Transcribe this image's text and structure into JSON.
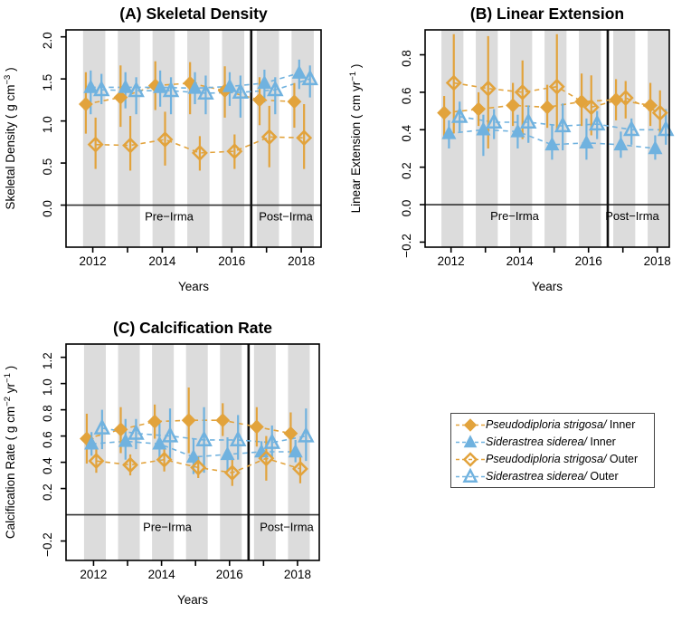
{
  "colors": {
    "orange": "#E2A33C",
    "blue": "#70B2DF",
    "band": "#DCDCDC",
    "axis": "#000000",
    "zero_line": "#333333",
    "divider": "#111111",
    "period_label": "#3A3A3A",
    "legend_border": "#444444"
  },
  "chart_data": [
    {
      "id": "A",
      "type": "scatter",
      "title": "(A) Skeletal Density",
      "ylabel": [
        {
          "t": "Skeletal  Density ( g cm"
        },
        {
          "t": "−3",
          "sup": true
        },
        {
          "t": " )"
        }
      ],
      "xlabel": "Years",
      "xlim": [
        2011.23,
        2018.57
      ],
      "ylim": [
        -0.5,
        2.083
      ],
      "grid": false,
      "legend_position": "none",
      "x_ticks": [
        {
          "v": 2012,
          "label": "2012"
        },
        {
          "v": 2013,
          "label": ""
        },
        {
          "v": 2014,
          "label": "2014"
        },
        {
          "v": 2015,
          "label": ""
        },
        {
          "v": 2016,
          "label": "2016"
        },
        {
          "v": 2017,
          "label": ""
        },
        {
          "v": 2018,
          "label": "2018"
        }
      ],
      "y_ticks": [
        {
          "v": 0.0,
          "label": "0.0"
        },
        {
          "v": 0.5,
          "label": "0.5"
        },
        {
          "v": 1.0,
          "label": "1.0"
        },
        {
          "v": 1.5,
          "label": "1.5"
        },
        {
          "v": 2.0,
          "label": "2.0"
        }
      ],
      "zero_line": 0,
      "divider_x": 2016.56,
      "period_labels": {
        "pre": "Pre−Irma",
        "post": "Post−Irma"
      },
      "bands": {
        "from": -0.28,
        "to": 0.36
      },
      "years": [
        2012,
        2013,
        2014,
        2015,
        2016,
        2017,
        2018
      ],
      "series": [
        {
          "key": "pd_inner",
          "name": "Pseudodiploria strigosa/ Inner",
          "marker": "diamond",
          "variant": "filled",
          "color_key": "orange",
          "xoff": -0.2,
          "values": [
            1.2,
            1.28,
            1.42,
            1.45,
            1.36,
            1.25,
            1.23
          ],
          "lo": [
            0.85,
            0.93,
            1.13,
            1.08,
            1.04,
            0.95,
            0.92
          ],
          "hi": [
            1.58,
            1.66,
            1.71,
            1.7,
            1.65,
            1.52,
            1.45
          ]
        },
        {
          "key": "ss_inner",
          "name": "Siderastrea siderea/ Inner",
          "marker": "triangle",
          "variant": "filled",
          "color_key": "blue",
          "xoff": -0.06,
          "values": [
            1.4,
            1.4,
            1.4,
            1.39,
            1.41,
            1.45,
            1.57
          ],
          "lo": [
            1.08,
            1.15,
            1.17,
            1.2,
            1.18,
            1.22,
            1.38
          ],
          "hi": [
            1.6,
            1.58,
            1.6,
            1.58,
            1.58,
            1.61,
            1.73
          ]
        },
        {
          "key": "pd_outer",
          "name": "Pseudodiploria strigosa/ Outer",
          "marker": "diamond",
          "variant": "open",
          "color_key": "orange",
          "xoff": 0.08,
          "values": [
            0.72,
            0.71,
            0.78,
            0.62,
            0.64,
            0.81,
            0.8
          ],
          "lo": [
            0.43,
            0.41,
            0.47,
            0.41,
            0.43,
            0.45,
            0.43
          ],
          "hi": [
            1.04,
            1.06,
            1.11,
            0.82,
            0.84,
            1.18,
            1.2
          ]
        },
        {
          "key": "ss_outer",
          "name": "Siderastrea siderea/ Outer",
          "marker": "triangle",
          "variant": "open",
          "color_key": "blue",
          "xoff": 0.25,
          "values": [
            1.37,
            1.36,
            1.36,
            1.33,
            1.34,
            1.37,
            1.5
          ],
          "lo": [
            1.2,
            1.08,
            1.08,
            1.08,
            1.04,
            1.08,
            1.28
          ],
          "hi": [
            1.56,
            1.52,
            1.52,
            1.54,
            1.54,
            1.52,
            1.66
          ]
        }
      ]
    },
    {
      "id": "B",
      "type": "scatter",
      "title": "(B) Linear Extension",
      "ylabel": [
        {
          "t": "Linear  Extension ( cm yr"
        },
        {
          "t": "−1",
          "sup": true
        },
        {
          "t": " )"
        }
      ],
      "xlabel": "Years",
      "xlim": [
        2011.245,
        2018.35
      ],
      "ylim": [
        -0.227,
        0.933
      ],
      "grid": false,
      "legend_position": "none",
      "x_ticks": [
        {
          "v": 2012,
          "label": "2012"
        },
        {
          "v": 2013,
          "label": ""
        },
        {
          "v": 2014,
          "label": "2014"
        },
        {
          "v": 2015,
          "label": ""
        },
        {
          "v": 2016,
          "label": "2016"
        },
        {
          "v": 2017,
          "label": ""
        },
        {
          "v": 2018,
          "label": "2018"
        }
      ],
      "y_ticks": [
        {
          "v": -0.2,
          "label": "−0.2"
        },
        {
          "v": 0.0,
          "label": "0.0"
        },
        {
          "v": 0.2,
          "label": "0.2"
        },
        {
          "v": 0.4,
          "label": "0.4"
        },
        {
          "v": 0.6,
          "label": "0.6"
        },
        {
          "v": 0.8,
          "label": "0.8"
        }
      ],
      "zero_line": 0,
      "divider_x": 2016.56,
      "period_labels": {
        "pre": "Pre−Irma",
        "post": "Post−Irma"
      },
      "bands": {
        "from": -0.28,
        "to": 0.36
      },
      "years": [
        2012,
        2013,
        2014,
        2015,
        2016,
        2017,
        2018
      ],
      "series": [
        {
          "key": "pd_inner",
          "name": "Pseudodiploria strigosa/ Inner",
          "marker": "diamond",
          "variant": "filled",
          "color_key": "orange",
          "xoff": -0.2,
          "values": [
            0.49,
            0.51,
            0.53,
            0.52,
            0.55,
            0.56,
            0.53
          ],
          "lo": [
            0.35,
            0.42,
            0.42,
            0.41,
            0.42,
            0.45,
            0.42
          ],
          "hi": [
            0.58,
            0.6,
            0.65,
            0.64,
            0.7,
            0.67,
            0.65
          ]
        },
        {
          "key": "ss_inner",
          "name": "Siderastrea siderea/ Inner",
          "marker": "triangle",
          "variant": "filled",
          "color_key": "blue",
          "xoff": -0.06,
          "values": [
            0.38,
            0.4,
            0.39,
            0.32,
            0.33,
            0.32,
            0.3
          ],
          "lo": [
            0.3,
            0.26,
            0.3,
            0.24,
            0.24,
            0.25,
            0.24
          ],
          "hi": [
            0.45,
            0.48,
            0.48,
            0.43,
            0.46,
            0.39,
            0.37
          ]
        },
        {
          "key": "pd_outer",
          "name": "Pseudodiploria strigosa/ Outer",
          "marker": "diamond",
          "variant": "open",
          "color_key": "orange",
          "xoff": 0.08,
          "values": [
            0.65,
            0.62,
            0.6,
            0.63,
            0.52,
            0.57,
            0.49
          ],
          "lo": [
            0.38,
            0.3,
            0.35,
            0.4,
            0.37,
            0.46,
            0.37
          ],
          "hi": [
            0.91,
            0.9,
            0.77,
            0.91,
            0.69,
            0.66,
            0.61
          ]
        },
        {
          "key": "ss_outer",
          "name": "Siderastrea siderea/ Outer",
          "marker": "triangle",
          "variant": "open",
          "color_key": "blue",
          "xoff": 0.25,
          "values": [
            0.47,
            0.44,
            0.44,
            0.42,
            0.43,
            0.4,
            0.4
          ],
          "lo": [
            0.39,
            0.35,
            0.33,
            0.29,
            0.35,
            0.32,
            0.32
          ],
          "hi": [
            0.55,
            0.51,
            0.53,
            0.54,
            0.5,
            0.46,
            0.51
          ]
        }
      ]
    },
    {
      "id": "C",
      "type": "scatter",
      "title": "(C) Calcification Rate",
      "ylabel": [
        {
          "t": "Calcification  Rate ( g cm"
        },
        {
          "t": "−2",
          "sup": true
        },
        {
          "t": " yr"
        },
        {
          "t": "−1",
          "sup": true
        },
        {
          "t": " )"
        }
      ],
      "xlabel": "Years",
      "xlim": [
        2011.19,
        2018.64
      ],
      "ylim": [
        -0.348,
        1.301
      ],
      "grid": false,
      "legend_position": "outside-right",
      "x_ticks": [
        {
          "v": 2012,
          "label": "2012"
        },
        {
          "v": 2013,
          "label": ""
        },
        {
          "v": 2014,
          "label": "2014"
        },
        {
          "v": 2015,
          "label": ""
        },
        {
          "v": 2016,
          "label": "2016"
        },
        {
          "v": 2017,
          "label": ""
        },
        {
          "v": 2018,
          "label": "2018"
        }
      ],
      "y_ticks": [
        {
          "v": -0.2,
          "label": "−0.2"
        },
        {
          "v": 0.2,
          "label": "0.2"
        },
        {
          "v": 0.4,
          "label": "0.4"
        },
        {
          "v": 0.6,
          "label": "0.6"
        },
        {
          "v": 0.8,
          "label": "0.8"
        },
        {
          "v": 1.0,
          "label": "1.0"
        },
        {
          "v": 1.2,
          "label": "1.2"
        }
      ],
      "zero_line": 0,
      "divider_x": 2016.56,
      "period_labels": {
        "pre": "Pre−Irma",
        "post": "Post−Irma"
      },
      "bands": {
        "from": -0.28,
        "to": 0.36
      },
      "years": [
        2012,
        2013,
        2014,
        2015,
        2016,
        2017,
        2018
      ],
      "series": [
        {
          "key": "pd_inner",
          "name": "Pseudodiploria strigosa/ Inner",
          "marker": "diamond",
          "variant": "filled",
          "color_key": "orange",
          "xoff": -0.2,
          "values": [
            0.58,
            0.65,
            0.71,
            0.72,
            0.72,
            0.67,
            0.62
          ],
          "lo": [
            0.39,
            0.47,
            0.58,
            0.47,
            0.6,
            0.52,
            0.46
          ],
          "hi": [
            0.77,
            0.82,
            0.84,
            0.97,
            0.85,
            0.82,
            0.78
          ]
        },
        {
          "key": "ss_inner",
          "name": "Siderastrea siderea/ Inner",
          "marker": "triangle",
          "variant": "filled",
          "color_key": "blue",
          "xoff": -0.06,
          "values": [
            0.54,
            0.56,
            0.54,
            0.44,
            0.46,
            0.48,
            0.48
          ],
          "lo": [
            0.45,
            0.42,
            0.4,
            0.31,
            0.33,
            0.41,
            0.4
          ],
          "hi": [
            0.63,
            0.73,
            0.7,
            0.58,
            0.59,
            0.56,
            0.57
          ]
        },
        {
          "key": "pd_outer",
          "name": "Pseudodiploria strigosa/ Outer",
          "marker": "diamond",
          "variant": "open",
          "color_key": "orange",
          "xoff": 0.08,
          "values": [
            0.41,
            0.38,
            0.42,
            0.36,
            0.32,
            0.43,
            0.35
          ],
          "lo": [
            0.32,
            0.3,
            0.33,
            0.28,
            0.22,
            0.26,
            0.24
          ],
          "hi": [
            0.5,
            0.46,
            0.5,
            0.44,
            0.42,
            0.6,
            0.45
          ]
        },
        {
          "key": "ss_outer",
          "name": "Siderastrea siderea/ Outer",
          "marker": "triangle",
          "variant": "open",
          "color_key": "blue",
          "xoff": 0.25,
          "values": [
            0.66,
            0.62,
            0.6,
            0.57,
            0.57,
            0.55,
            0.6
          ],
          "lo": [
            0.5,
            0.5,
            0.42,
            0.32,
            0.42,
            0.42,
            0.41
          ],
          "hi": [
            0.8,
            0.73,
            0.81,
            0.82,
            0.76,
            0.68,
            0.81
          ]
        }
      ]
    }
  ],
  "legend": {
    "items": [
      {
        "species": "Pseudodiploria strigosa/",
        "site": " Inner",
        "marker": "diamond",
        "variant": "filled",
        "color_key": "orange"
      },
      {
        "species": "Siderastrea siderea/",
        "site": " Inner",
        "marker": "triangle",
        "variant": "filled",
        "color_key": "blue"
      },
      {
        "species": "Pseudodiploria strigosa/",
        "site": " Outer",
        "marker": "diamond",
        "variant": "open",
        "color_key": "orange"
      },
      {
        "species": "Siderastrea siderea/",
        "site": " Outer",
        "marker": "triangle",
        "variant": "open",
        "color_key": "blue"
      }
    ]
  }
}
